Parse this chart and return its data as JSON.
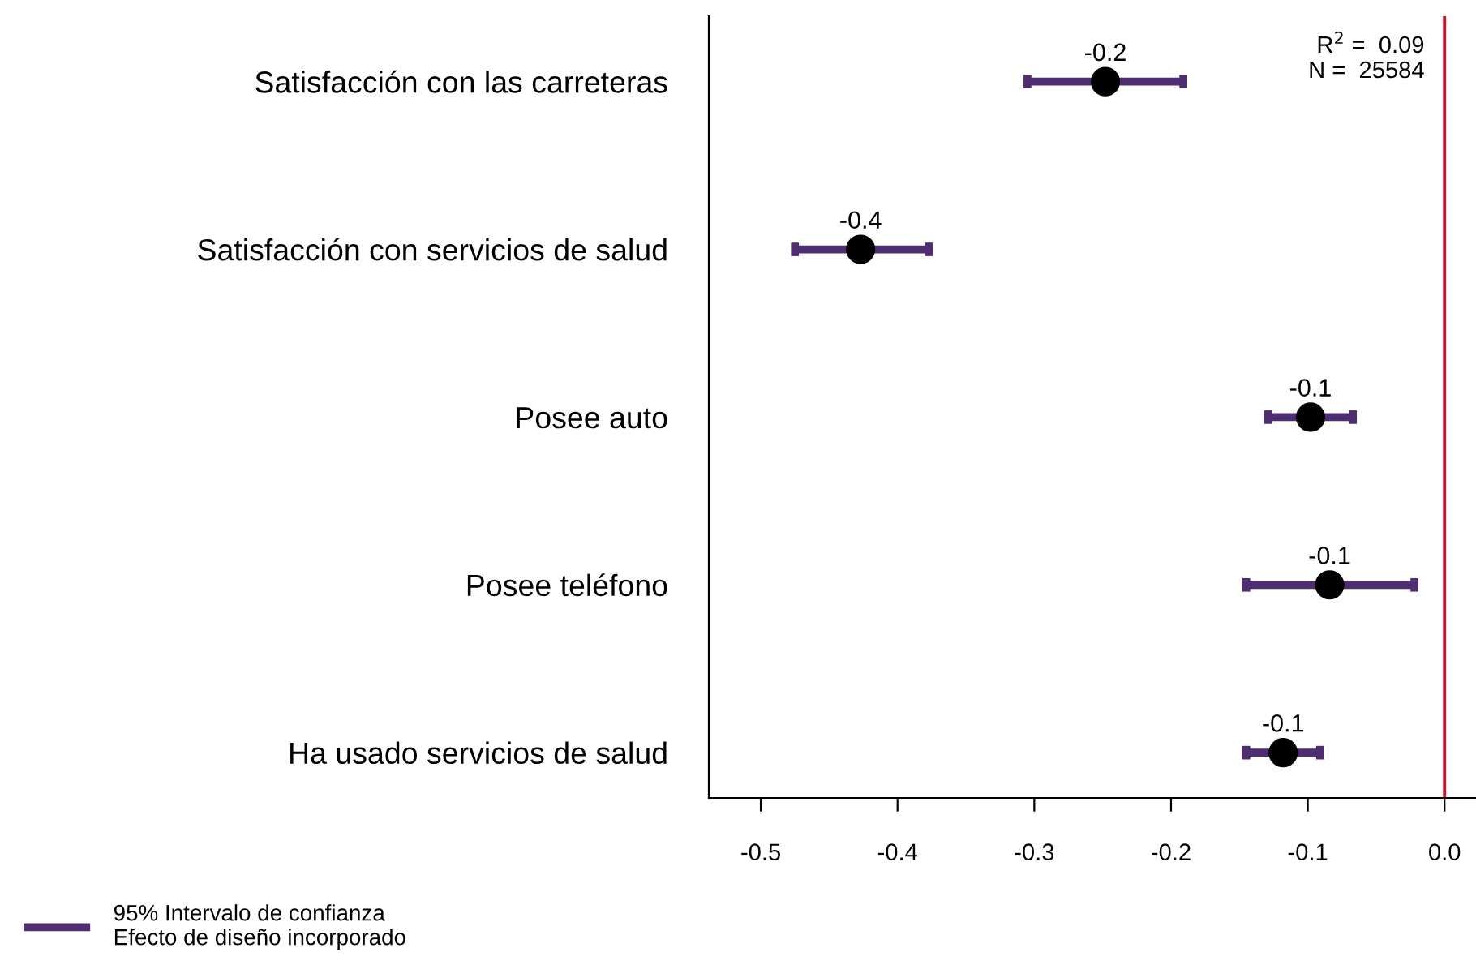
{
  "chart_data": {
    "type": "scatter",
    "orientation": "horizontal",
    "categories": [
      "Satisfacción con las carreteras",
      "Satisfacción con servicios de salud",
      "Posee auto",
      "Posee teléfono",
      "Ha usado servicios de salud"
    ],
    "series": [
      {
        "name": "95% Intervalo de confianza\nEfecto de diseño incorporado",
        "color": "#4f2d73",
        "colors": [
          "#000000",
          "#000000",
          "#000000",
          "#000000",
          "#000000"
        ],
        "values": [
          -0.248,
          -0.427,
          -0.098,
          -0.084,
          -0.118
        ],
        "errors": [
          [
            -0.305,
            -0.191
          ],
          [
            -0.475,
            -0.377
          ],
          [
            -0.129,
            -0.067
          ],
          [
            -0.145,
            -0.022
          ],
          [
            -0.145,
            -0.091
          ]
        ],
        "value_labels": [
          "-0.2",
          "-0.4",
          "-0.1",
          "-0.1",
          "-0.1"
        ]
      }
    ],
    "xlim": [
      -0.538,
      0.023
    ],
    "xticks": [
      -0.5,
      -0.4,
      -0.3,
      -0.2,
      -0.1,
      {
        "value": 0.0,
        "label": "0.0"
      }
    ],
    "ref_lines": [
      {
        "axis": "x",
        "value": 0.0,
        "color": "#c8102e"
      }
    ],
    "annotations": [
      "R$^{2}$ =  0.09",
      "N =  25584"
    ],
    "marker": "circle",
    "legend": "bottom left"
  }
}
